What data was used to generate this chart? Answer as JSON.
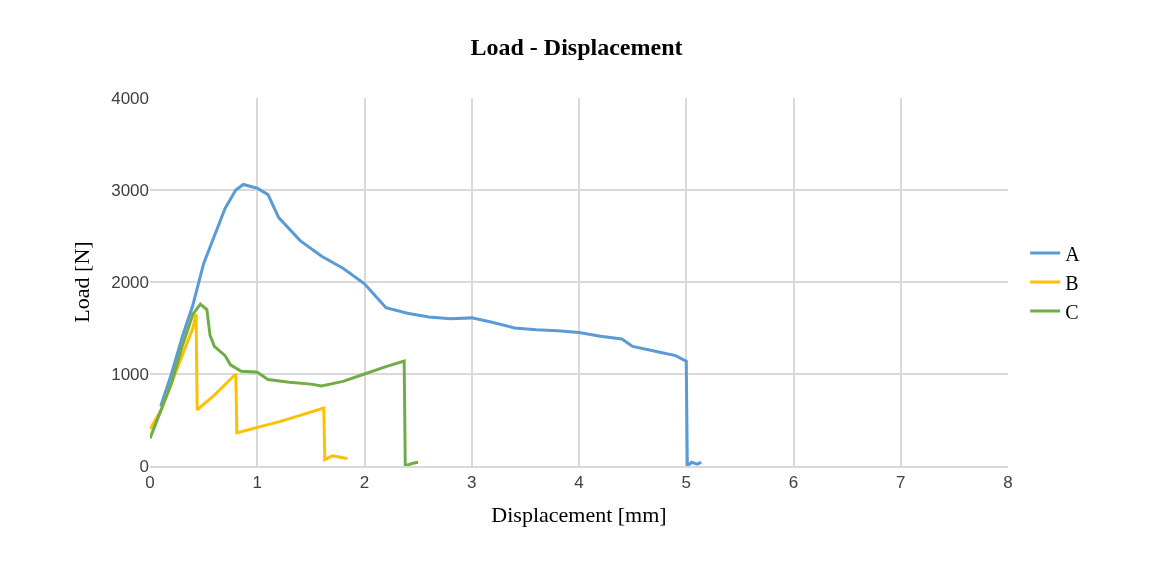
{
  "chart_data": {
    "type": "line",
    "title": "Load - Displacement",
    "xlabel": "Displacement [mm]",
    "ylabel": "Load [N]",
    "xlim": [
      0,
      8
    ],
    "xticks": [
      0,
      1,
      2,
      3,
      4,
      5,
      6,
      7,
      8
    ],
    "ylim": [
      0,
      4000
    ],
    "yticks": [
      0,
      1000,
      2000,
      3000,
      4000
    ],
    "grid": true,
    "legend": "right",
    "marker": "none",
    "line_style": "solid",
    "series": [
      {
        "name": "A",
        "color": "#5b9bd5",
        "x": [
          0.1,
          0.2,
          0.3,
          0.4,
          0.5,
          0.6,
          0.7,
          0.8,
          0.87,
          1.0,
          1.1,
          1.2,
          1.4,
          1.6,
          1.8,
          2.0,
          2.1,
          2.2,
          2.4,
          2.6,
          2.8,
          3.0,
          3.2,
          3.4,
          3.6,
          3.8,
          4.0,
          4.2,
          4.4,
          4.5,
          4.7,
          4.9,
          5.0,
          5.01,
          5.05,
          5.1,
          5.14
        ],
        "values": [
          650,
          1000,
          1400,
          1750,
          2200,
          2500,
          2800,
          3000,
          3060,
          3020,
          2950,
          2700,
          2450,
          2280,
          2150,
          1980,
          1850,
          1720,
          1660,
          1620,
          1600,
          1610,
          1560,
          1500,
          1480,
          1470,
          1450,
          1410,
          1380,
          1300,
          1250,
          1200,
          1140,
          0,
          40,
          20,
          40
        ]
      },
      {
        "name": "B",
        "color": "#ffc000",
        "x": [
          0,
          0.1,
          0.2,
          0.3,
          0.4,
          0.43,
          0.44,
          0.6,
          0.8,
          0.81,
          1.0,
          1.2,
          1.4,
          1.62,
          1.63,
          1.7,
          1.8,
          1.84
        ],
        "values": [
          400,
          600,
          900,
          1200,
          1500,
          1650,
          610,
          770,
          1000,
          360,
          420,
          480,
          550,
          630,
          70,
          110,
          90,
          80
        ]
      },
      {
        "name": "C",
        "color": "#70ad47",
        "x": [
          0,
          0.05,
          0.2,
          0.3,
          0.4,
          0.47,
          0.53,
          0.56,
          0.6,
          0.7,
          0.75,
          0.85,
          1.0,
          1.1,
          1.3,
          1.5,
          1.6,
          1.8,
          2.0,
          2.2,
          2.37,
          2.38,
          2.45,
          2.5
        ],
        "values": [
          300,
          450,
          900,
          1300,
          1650,
          1760,
          1700,
          1420,
          1300,
          1200,
          1100,
          1030,
          1020,
          940,
          910,
          890,
          870,
          920,
          1000,
          1080,
          1140,
          0,
          30,
          40
        ]
      }
    ]
  }
}
